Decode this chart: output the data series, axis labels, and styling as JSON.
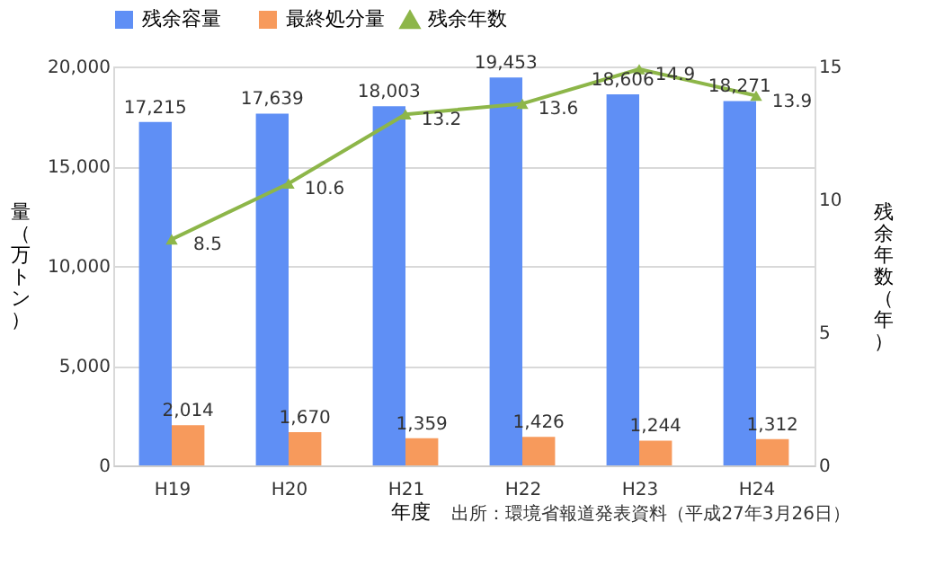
{
  "chart_data": {
    "type": "bar",
    "categories": [
      "H19",
      "H20",
      "H21",
      "H22",
      "H23",
      "H24"
    ],
    "series": [
      {
        "name": "残余容量",
        "color": "#5f8ff5",
        "values": [
          17215,
          17639,
          18003,
          19453,
          18606,
          18271
        ],
        "value_labels": [
          "17,215",
          "17,639",
          "18,003",
          "19,453",
          "18,606",
          "18,271"
        ]
      },
      {
        "name": "最終処分量",
        "color": "#f79a5c",
        "values": [
          2014,
          1670,
          1359,
          1426,
          1244,
          1312
        ],
        "value_labels": [
          "2,014",
          "1,670",
          "1,359",
          "1,426",
          "1,244",
          "1,312"
        ]
      },
      {
        "name": "残余年数",
        "type": "line",
        "axis": "y2",
        "color": "#8db649",
        "marker": "triangle",
        "values": [
          8.5,
          10.6,
          13.2,
          13.6,
          14.9,
          13.9
        ]
      }
    ],
    "xlabel": "年度",
    "ylabel": "量（万トン）",
    "y2label": "残余年数（年）",
    "ylim": [
      0,
      20000
    ],
    "yticks": [
      0,
      {
        "value": 5000,
        "label": "5,000"
      },
      {
        "value": 10000,
        "label": "10,000"
      },
      {
        "value": 15000,
        "label": "15,000"
      },
      {
        "value": 20000,
        "label": "20,000"
      }
    ],
    "y2lim": [
      0,
      15
    ],
    "y2ticks": [
      0,
      5,
      10,
      15
    ],
    "grid": "y",
    "legend": "top",
    "data_labels": true,
    "annotations": [
      "出所：環境省報道発表資料（平成27年3月26日）"
    ]
  }
}
